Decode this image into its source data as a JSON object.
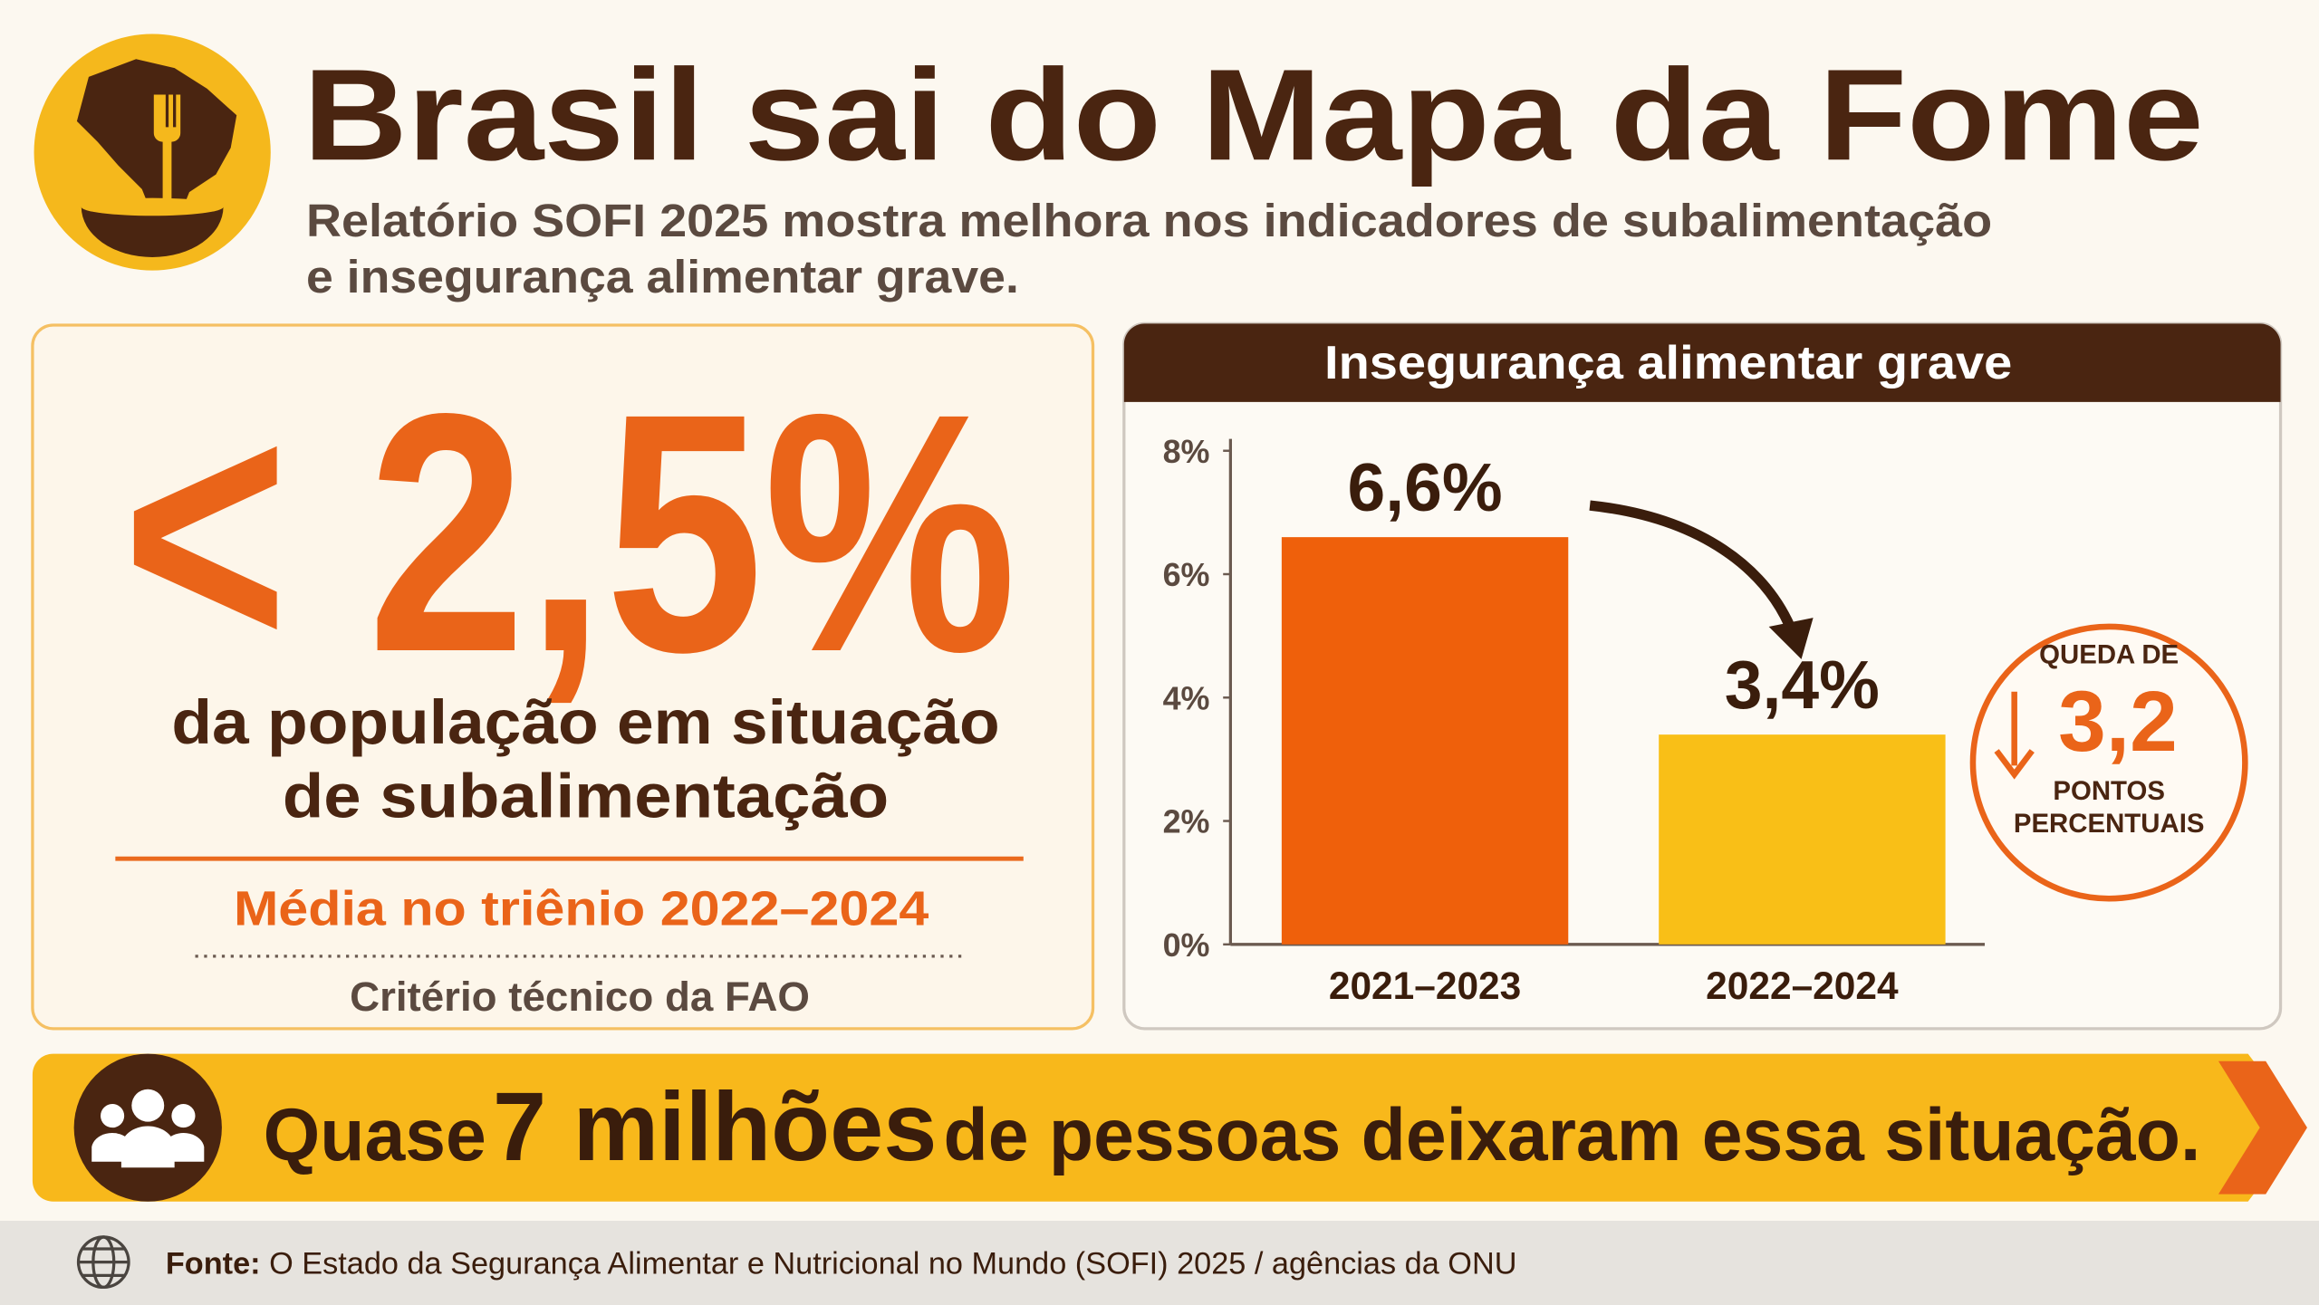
{
  "header": {
    "title": "Brasil sai do Mapa da Fome",
    "subtitle": [
      "Relatório SOFI 2025 mostra melhora nos indicadores de subalimentação",
      "e insegurança alimentar grave."
    ]
  },
  "stat": {
    "value": "< 2,5%",
    "description": [
      "da população em situação",
      "de subalimentação"
    ],
    "period": "Média no triênio 2022–2024",
    "criterion": "Critério técnico da FAO"
  },
  "chart_data": {
    "type": "bar",
    "title": "Insegurança alimentar grave",
    "categories": [
      "2021–2023",
      "2022–2024"
    ],
    "values": [
      6.6,
      3.4
    ],
    "value_labels": [
      "6,6%",
      "3,4%"
    ],
    "colors": [
      "#ef600b",
      "#f9bf17"
    ],
    "ylim": [
      0,
      8
    ],
    "yticks": [
      {
        "value": 0,
        "label": "0%"
      },
      {
        "value": 2,
        "label": "2%"
      },
      {
        "value": 4,
        "label": "4%"
      },
      {
        "value": 6,
        "label": "6%"
      },
      {
        "value": 8,
        "label": "8%"
      }
    ],
    "grid": false
  },
  "badge": {
    "top": "QUEDA DE",
    "value": "3,2",
    "bottom": [
      "PONTOS",
      "PERCENTUAIS"
    ]
  },
  "banner": {
    "parts": [
      "Quase",
      "7 milhões",
      "de pessoas deixaram essa situação."
    ]
  },
  "footer": {
    "label": "Fonte:",
    "text": "O Estado da Segurança Alimentar e Nutricional no Mundo (SOFI) 2025 / agências da ONU"
  }
}
